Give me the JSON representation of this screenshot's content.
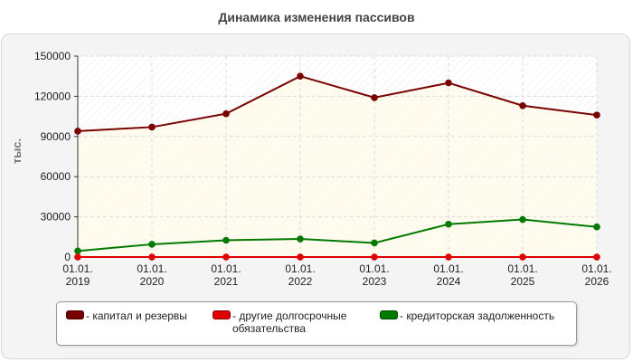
{
  "chart_data": {
    "type": "line",
    "title": "Динамика изменения пассивов",
    "ylabel": "тыс.",
    "xlabel": "",
    "ylim": [
      0,
      150000
    ],
    "yticks": [
      0,
      30000,
      60000,
      90000,
      120000,
      150000
    ],
    "x": [
      "01.01.\n2019",
      "01.01.\n2020",
      "01.01.\n2021",
      "01.01.\n2022",
      "01.01.\n2023",
      "01.01.\n2024",
      "01.01.\n2025",
      "01.01.\n2026"
    ],
    "grid": true,
    "legend_position": "bottom",
    "series": [
      {
        "name": "капитал и резервы",
        "color": "#7a0000",
        "values": [
          94000,
          97000,
          107000,
          135000,
          119000,
          130000,
          113000,
          106000
        ]
      },
      {
        "name": "другие долгосрочные обязательства",
        "color": "#e00000",
        "values": [
          0,
          0,
          0,
          0,
          0,
          0,
          0,
          0
        ]
      },
      {
        "name": "кредиторская задолженность",
        "color": "#007a00",
        "values": [
          4500,
          9500,
          12500,
          13500,
          10500,
          24500,
          28000,
          22500
        ]
      }
    ],
    "legend_labels": [
      "- капитал и резервы",
      "- другие долгосрочные обязательства",
      "- кредиторская задолженность"
    ]
  }
}
